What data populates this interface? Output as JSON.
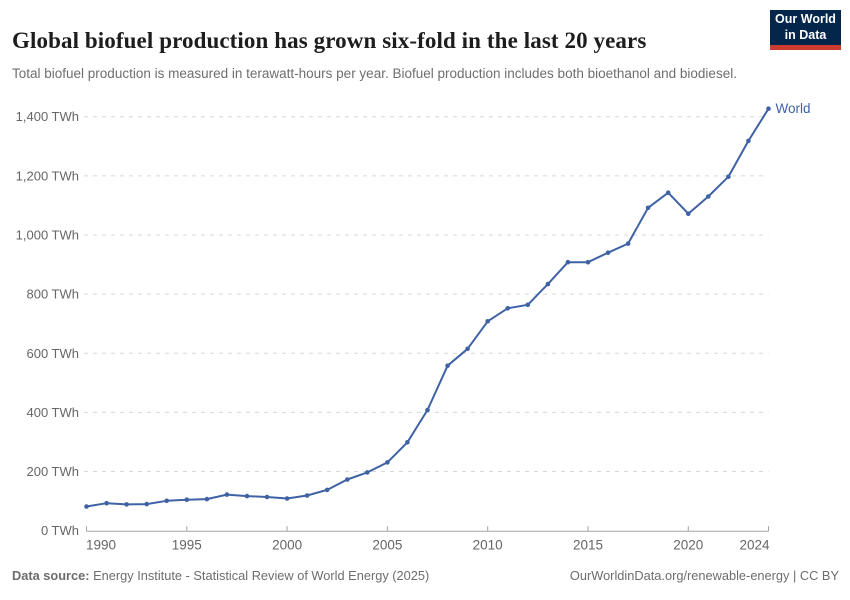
{
  "header": {
    "title": "Global biofuel production has grown six-fold in the last 20 years",
    "subtitle": "Total biofuel production is measured in terawatt-hours per year. Biofuel production includes both bioethanol and biodiesel.",
    "logo": {
      "line1": "Our World",
      "line2": "in Data"
    }
  },
  "footer": {
    "source_label": "Data source:",
    "source_text": " Energy Institute - Statistical Review of World Energy (2025)",
    "url_text": "OurWorldinData.org/renewable-energy",
    "separator": " | ",
    "license": "CC BY"
  },
  "colors": {
    "series_blue": "#3f62a5",
    "title_text": "#1d1d1d",
    "subtitle_gray": "#6e6e6e",
    "axis_label_gray": "#666666",
    "axis_line_gray": "#a3a3a3",
    "gridline_gray": "#d8d8d8",
    "logo_navy": "#04264a",
    "logo_red": "#cc3a30"
  },
  "chart_data": {
    "type": "line",
    "title": "Global biofuel production has grown six-fold in the last 20 years",
    "subtitle": "Total biofuel production is measured in terawatt-hours per year. Biofuel production includes both bioethanol and biodiesel.",
    "unit": "TWh",
    "xlabel": "",
    "ylabel": "TWh",
    "xlim": [
      1990,
      2024
    ],
    "ylim": [
      0,
      1400
    ],
    "grid": "horizontal-dashed",
    "legend": "series-end-label",
    "x": [
      1990,
      1991,
      1992,
      1993,
      1994,
      1995,
      1996,
      1997,
      1998,
      1999,
      2000,
      2001,
      2002,
      2003,
      2004,
      2005,
      2006,
      2007,
      2008,
      2009,
      2010,
      2011,
      2012,
      2013,
      2014,
      2015,
      2016,
      2017,
      2018,
      2019,
      2020,
      2021,
      2022,
      2023,
      2024
    ],
    "series": [
      {
        "name": "World",
        "color": "#3f62a5",
        "values": [
          82,
          93,
          89,
          90,
          101,
          105,
          107,
          122,
          117,
          114,
          109,
          119,
          138,
          173,
          197,
          231,
          299,
          408,
          558,
          615,
          708,
          752,
          764,
          834,
          908,
          908,
          940,
          971,
          1092,
          1143,
          1072,
          1130,
          1197,
          1318,
          1427
        ]
      }
    ],
    "x_ticks": [
      1990,
      1995,
      2000,
      2005,
      2010,
      2015,
      2020,
      2024
    ],
    "x_tick_labels": [
      "1990",
      "1995",
      "2000",
      "2005",
      "2010",
      "2015",
      "2020",
      "2024"
    ],
    "y_ticks": [
      0,
      200,
      400,
      600,
      800,
      1000,
      1200,
      1400
    ],
    "y_tick_labels": [
      "0 TWh",
      "200 TWh",
      "400 TWh",
      "600 TWh",
      "800 TWh",
      "1,000 TWh",
      "1,200 TWh",
      "1,400 TWh"
    ]
  }
}
